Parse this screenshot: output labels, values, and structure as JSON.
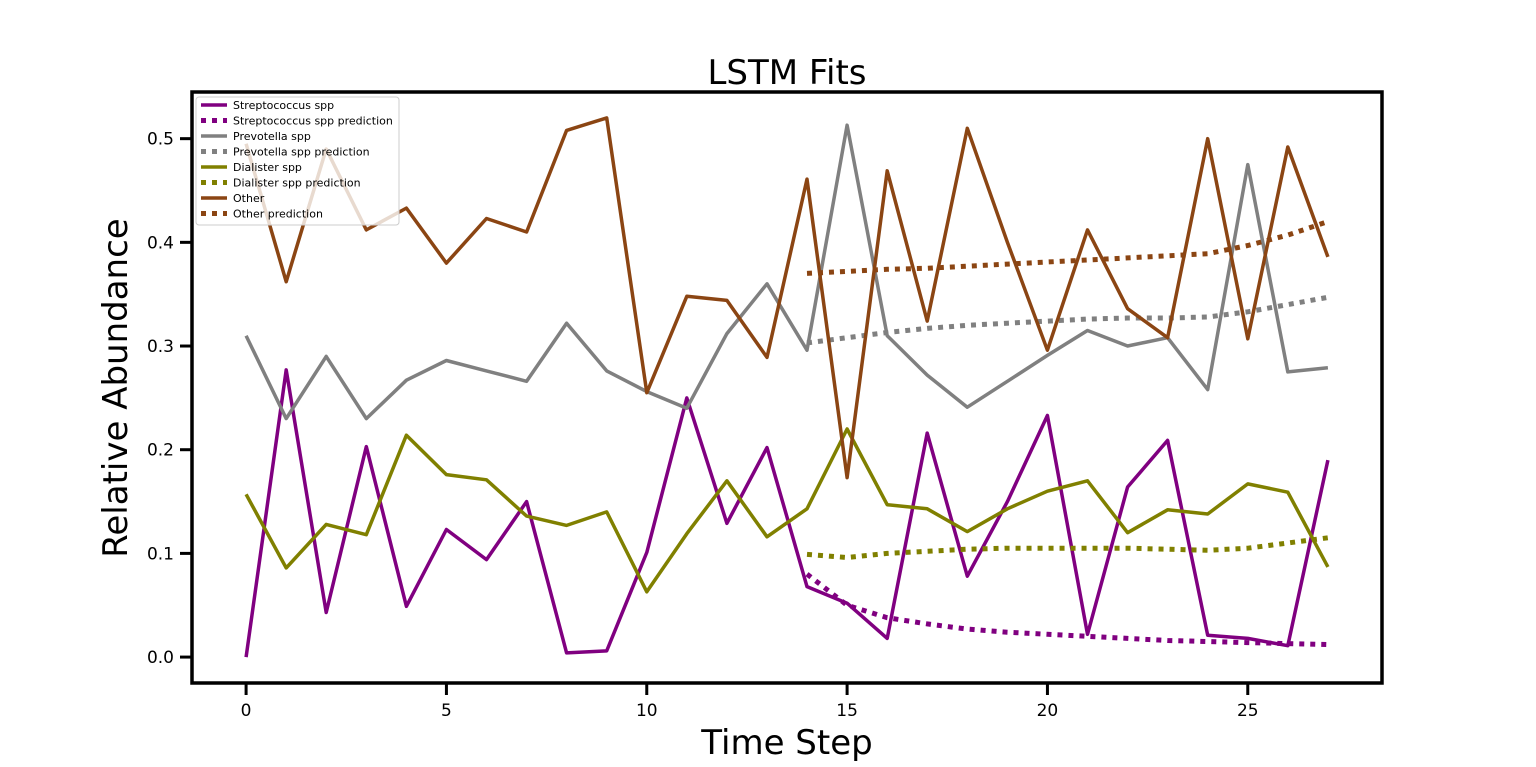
{
  "chart_data": {
    "type": "line",
    "title": "LSTM Fits",
    "xlabel": "Time Step",
    "ylabel": "Relative Abundance",
    "xlim": [
      -1.35,
      28.35
    ],
    "ylim": [
      -0.025,
      0.545
    ],
    "xticks": [
      0,
      5,
      10,
      15,
      20,
      25
    ],
    "yticks": [
      0.0,
      0.1,
      0.2,
      0.3,
      0.4,
      0.5
    ],
    "xtick_labels": [
      "0",
      "5",
      "10",
      "15",
      "20",
      "25"
    ],
    "ytick_labels": [
      "0.0",
      "0.1",
      "0.2",
      "0.3",
      "0.4",
      "0.5"
    ],
    "grid": false,
    "legend_position": "top-left",
    "colors": {
      "streptococcus": "#800080",
      "prevotella": "#808080",
      "dialister": "#808000",
      "other": "#8b4513"
    },
    "series": [
      {
        "name": "Streptococcus spp",
        "style": "solid",
        "color": "#800080",
        "x": [
          0,
          1,
          2,
          3,
          4,
          5,
          6,
          7,
          8,
          9,
          10,
          11,
          12,
          13,
          14,
          15,
          16,
          17,
          18,
          19,
          20,
          21,
          22,
          23,
          24,
          25,
          26,
          27
        ],
        "y": [
          0.0,
          0.277,
          0.043,
          0.203,
          0.049,
          0.123,
          0.094,
          0.15,
          0.004,
          0.006,
          0.101,
          0.25,
          0.129,
          0.202,
          0.068,
          0.052,
          0.018,
          0.216,
          0.078,
          0.15,
          0.233,
          0.022,
          0.164,
          0.209,
          0.021,
          0.018,
          0.011,
          0.19
        ]
      },
      {
        "name": "Streptococcus spp prediction",
        "style": "dotted",
        "color": "#800080",
        "x": [
          14,
          15,
          16,
          17,
          18,
          19,
          20,
          21,
          22,
          23,
          24,
          25,
          26,
          27
        ],
        "y": [
          0.08,
          0.05,
          0.038,
          0.032,
          0.027,
          0.024,
          0.022,
          0.02,
          0.018,
          0.016,
          0.015,
          0.014,
          0.013,
          0.012
        ]
      },
      {
        "name": "Prevotella spp",
        "style": "solid",
        "color": "#808080",
        "x": [
          0,
          1,
          2,
          3,
          4,
          5,
          6,
          7,
          8,
          9,
          10,
          11,
          12,
          13,
          14,
          15,
          16,
          17,
          18,
          19,
          20,
          21,
          22,
          23,
          24,
          25,
          26,
          27
        ],
        "y": [
          0.31,
          0.23,
          0.29,
          0.23,
          0.267,
          0.286,
          0.276,
          0.266,
          0.322,
          0.276,
          0.256,
          0.24,
          0.312,
          0.36,
          0.296,
          0.513,
          0.31,
          0.272,
          0.241,
          0.266,
          0.291,
          0.315,
          0.3,
          0.308,
          0.258,
          0.475,
          0.275,
          0.279
        ]
      },
      {
        "name": "Prevotella spp prediction",
        "style": "dotted",
        "color": "#808080",
        "x": [
          14,
          15,
          16,
          17,
          18,
          19,
          20,
          21,
          22,
          23,
          24,
          25,
          26,
          27
        ],
        "y": [
          0.303,
          0.308,
          0.313,
          0.317,
          0.32,
          0.322,
          0.324,
          0.326,
          0.327,
          0.327,
          0.328,
          0.333,
          0.34,
          0.347
        ]
      },
      {
        "name": "Dialister spp",
        "style": "solid",
        "color": "#808000",
        "x": [
          0,
          1,
          2,
          3,
          4,
          5,
          6,
          7,
          8,
          9,
          10,
          11,
          12,
          13,
          14,
          15,
          16,
          17,
          18,
          19,
          20,
          21,
          22,
          23,
          24,
          25,
          26,
          27
        ],
        "y": [
          0.157,
          0.086,
          0.128,
          0.118,
          0.214,
          0.176,
          0.171,
          0.136,
          0.127,
          0.14,
          0.063,
          0.119,
          0.17,
          0.116,
          0.143,
          0.22,
          0.147,
          0.143,
          0.121,
          0.143,
          0.16,
          0.17,
          0.12,
          0.142,
          0.138,
          0.167,
          0.159,
          0.087
        ]
      },
      {
        "name": "Dialister spp prediction",
        "style": "dotted",
        "color": "#808000",
        "x": [
          14,
          15,
          16,
          17,
          18,
          19,
          20,
          21,
          22,
          23,
          24,
          25,
          26,
          27
        ],
        "y": [
          0.099,
          0.096,
          0.1,
          0.102,
          0.104,
          0.105,
          0.105,
          0.105,
          0.105,
          0.104,
          0.103,
          0.105,
          0.11,
          0.115
        ]
      },
      {
        "name": "Other",
        "style": "solid",
        "color": "#8b4513",
        "x": [
          0,
          1,
          2,
          3,
          4,
          5,
          6,
          7,
          8,
          9,
          10,
          11,
          12,
          13,
          14,
          15,
          16,
          17,
          18,
          19,
          20,
          21,
          22,
          23,
          24,
          25,
          26,
          27
        ],
        "y": [
          0.495,
          0.362,
          0.49,
          0.412,
          0.433,
          0.38,
          0.423,
          0.41,
          0.508,
          0.52,
          0.255,
          0.348,
          0.344,
          0.289,
          0.461,
          0.173,
          0.469,
          0.324,
          0.51,
          0.4,
          0.296,
          0.412,
          0.336,
          0.308,
          0.5,
          0.307,
          0.492,
          0.386
        ]
      },
      {
        "name": "Other prediction",
        "style": "dotted",
        "color": "#8b4513",
        "x": [
          14,
          15,
          16,
          17,
          18,
          19,
          20,
          21,
          22,
          23,
          24,
          25,
          26,
          27
        ],
        "y": [
          0.37,
          0.372,
          0.374,
          0.375,
          0.377,
          0.379,
          0.381,
          0.383,
          0.385,
          0.387,
          0.389,
          0.397,
          0.407,
          0.42
        ]
      }
    ]
  }
}
